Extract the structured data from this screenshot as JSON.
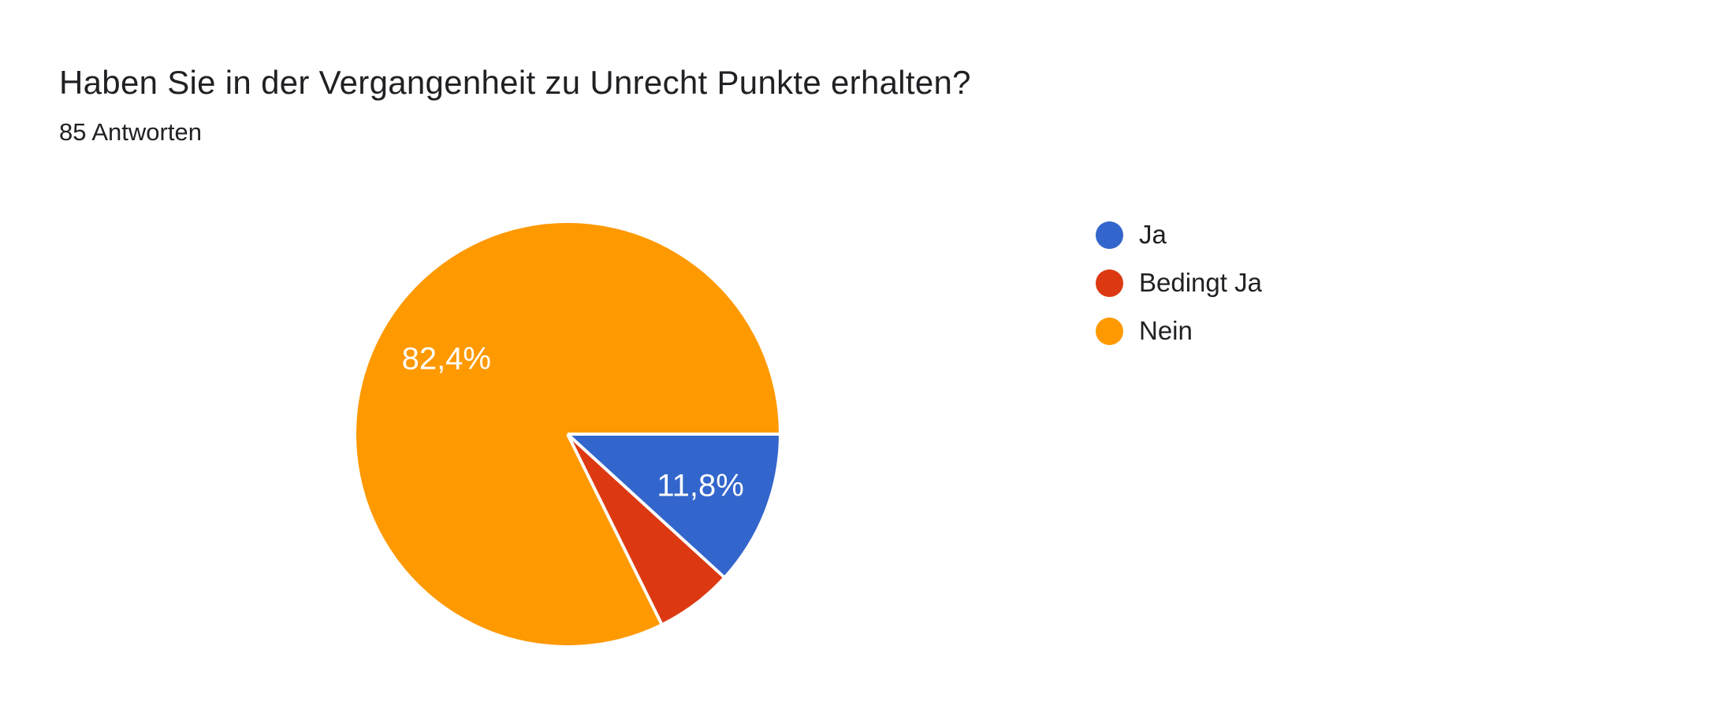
{
  "page": {
    "background_color": "#ffffff"
  },
  "header": {
    "title": "Haben Sie in der Vergangenheit zu Unrecht Punkte erhalten?",
    "responses": "85 Antworten"
  },
  "legend": {
    "items": [
      {
        "label": "Ja",
        "color": "#3366cc"
      },
      {
        "label": "Bedingt Ja",
        "color": "#dc3912"
      },
      {
        "label": "Nein",
        "color": "#ff9900"
      }
    ]
  },
  "chart_data": {
    "type": "pie",
    "title": "Haben Sie in der Vergangenheit zu Unrecht Punkte erhalten?",
    "subtitle": "85 Antworten",
    "total_responses": 85,
    "categories": [
      "Ja",
      "Bedingt Ja",
      "Nein"
    ],
    "values_percent": [
      11.8,
      5.9,
      82.4
    ],
    "slice_labels": [
      "11,8%",
      "",
      "82,4%"
    ],
    "colors": [
      "#3366cc",
      "#dc3912",
      "#ff9900"
    ],
    "start_angle_deg": 0,
    "direction": "clockwise",
    "legend_position": "right",
    "label_color": "#ffffff",
    "slice_border_color": "#ffffff"
  }
}
